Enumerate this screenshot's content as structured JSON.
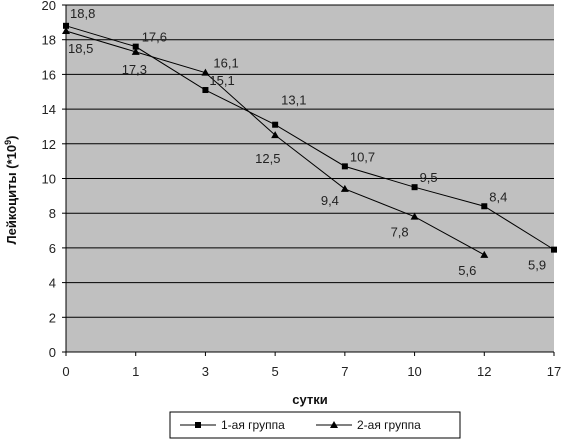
{
  "chart_data": {
    "type": "line",
    "xlabel": "сутки",
    "ylabel": "Лейкоциты (*10",
    "ylabel_sup": "9",
    "ylabel_tail": ")",
    "categories": [
      "0",
      "1",
      "3",
      "5",
      "7",
      "10",
      "12",
      "17"
    ],
    "ylim": [
      0,
      20
    ],
    "yticks": [
      0,
      2,
      4,
      6,
      8,
      10,
      12,
      14,
      16,
      18,
      20
    ],
    "grid": true,
    "legend_position": "bottom",
    "series": [
      {
        "name": "1-ая группа",
        "marker": "square",
        "values": [
          18.8,
          17.6,
          15.1,
          13.1,
          10.7,
          9.5,
          8.4,
          5.9
        ],
        "labels": [
          "18,8",
          "17,6",
          "15,1",
          "13,1",
          "10,7",
          "9,5",
          "8,4",
          "5,9"
        ]
      },
      {
        "name": "2-ая группа",
        "marker": "triangle",
        "values": [
          18.5,
          17.3,
          16.1,
          12.5,
          9.4,
          7.8,
          5.6,
          null
        ],
        "labels": [
          "18,5",
          "17,3",
          "16,1",
          "12,5",
          "9,4",
          "7,8",
          "5,6",
          null
        ]
      }
    ],
    "colors": {
      "plot_background": "#c0c0c0",
      "gridline": "#000000",
      "line": "#000000"
    }
  }
}
